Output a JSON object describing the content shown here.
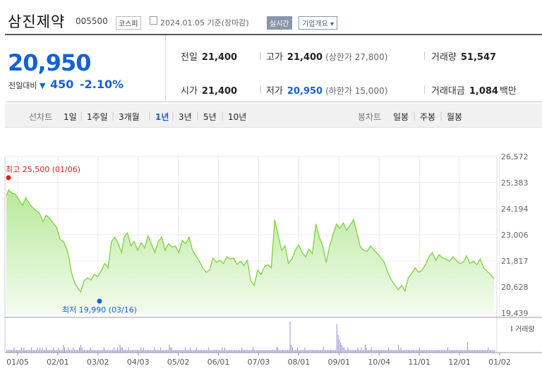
{
  "stock": {
    "name": "삼진제약",
    "code": "005500",
    "market": "코스피",
    "date": "2024.01.05",
    "date_suffix": "기준(장마감)",
    "realtime_btn": "실시간",
    "company_btn": "기업개요 ▾"
  },
  "quote": {
    "price": "20,950",
    "compare_label": "전일대비",
    "compare_arrow": "▼",
    "change": "450",
    "change_pct": "-2.10%",
    "prev_label": "전일",
    "prev": "21,400",
    "open_label": "시가",
    "open": "21,400",
    "high_label": "고가",
    "high": "21,400",
    "upper_limit": "(상한가 27,800)",
    "low_label": "저가",
    "low": "20,950",
    "lower_limit": "(하한가 15,000)",
    "volume_label": "거래량",
    "volume": "51,547",
    "amount_label": "거래대금",
    "amount": "1,084",
    "amount_unit": "백만"
  },
  "periods": {
    "line_label": "선차트",
    "line_items": [
      "1일",
      "1주일",
      "3개월",
      "1년",
      "3년",
      "5년",
      "10년"
    ],
    "active": "1년",
    "candle_label": "봉차트",
    "candle_items": [
      "일봉",
      "주봉",
      "월봉"
    ]
  },
  "chart_data": {
    "type": "area",
    "y_ticks": [
      "26,572",
      "25,383",
      "24,194",
      "23,006",
      "21,817",
      "20,628",
      "19,439"
    ],
    "ylim": [
      19439,
      26572
    ],
    "x_ticks": [
      "01/05",
      "02/01",
      "03/02",
      "04/03",
      "05/02",
      "06/01",
      "07/03",
      "08/01",
      "09/01",
      "10/04",
      "11/01",
      "12/01",
      "01/02"
    ],
    "high_label": "최고 25,500 (01/06)",
    "low_label": "최저 19,990 (03/16)",
    "volume_legend": "거래량",
    "price_series": [
      [
        0,
        24800
      ],
      [
        2,
        25050
      ],
      [
        5,
        24900
      ],
      [
        8,
        24850
      ],
      [
        11,
        24600
      ],
      [
        14,
        24350
      ],
      [
        17,
        24700
      ],
      [
        20,
        24450
      ],
      [
        23,
        24250
      ],
      [
        26,
        24100
      ],
      [
        29,
        24000
      ],
      [
        32,
        23600
      ],
      [
        35,
        23900
      ],
      [
        38,
        23750
      ],
      [
        41,
        23550
      ],
      [
        44,
        23350
      ],
      [
        47,
        22800
      ],
      [
        50,
        22700
      ],
      [
        53,
        22350
      ],
      [
        55,
        21900
      ],
      [
        57,
        21300
      ],
      [
        59,
        20950
      ],
      [
        61,
        20700
      ],
      [
        63,
        20550
      ],
      [
        65,
        20400
      ],
      [
        68,
        20900
      ],
      [
        71,
        21050
      ],
      [
        74,
        20950
      ],
      [
        77,
        21200
      ],
      [
        80,
        21100
      ],
      [
        83,
        21350
      ],
      [
        86,
        21700
      ],
      [
        89,
        21500
      ],
      [
        92,
        22700
      ],
      [
        95,
        22900
      ],
      [
        98,
        22600
      ],
      [
        101,
        22200
      ],
      [
        103,
        22900
      ],
      [
        106,
        23100
      ],
      [
        109,
        22500
      ],
      [
        112,
        22700
      ],
      [
        115,
        22300
      ],
      [
        118,
        22650
      ],
      [
        121,
        22400
      ],
      [
        124,
        22950
      ],
      [
        127,
        22600
      ],
      [
        130,
        22200
      ],
      [
        133,
        22700
      ],
      [
        136,
        22900
      ],
      [
        139,
        22300
      ],
      [
        142,
        22600
      ],
      [
        145,
        22450
      ],
      [
        148,
        22500
      ],
      [
        151,
        22200
      ],
      [
        154,
        22750
      ],
      [
        157,
        22600
      ],
      [
        160,
        22900
      ],
      [
        163,
        22300
      ],
      [
        166,
        22050
      ],
      [
        169,
        21800
      ],
      [
        172,
        21500
      ],
      [
        175,
        21300
      ],
      [
        178,
        21400
      ],
      [
        181,
        21950
      ],
      [
        184,
        21750
      ],
      [
        187,
        21850
      ],
      [
        190,
        21700
      ],
      [
        193,
        22000
      ],
      [
        196,
        21900
      ],
      [
        199,
        21950
      ],
      [
        202,
        21650
      ],
      [
        205,
        21800
      ],
      [
        208,
        21600
      ],
      [
        211,
        21850
      ],
      [
        214,
        20900
      ],
      [
        217,
        20700
      ],
      [
        220,
        21400
      ],
      [
        223,
        21200
      ],
      [
        226,
        21550
      ],
      [
        229,
        21650
      ],
      [
        232,
        21500
      ],
      [
        235,
        23700
      ],
      [
        238,
        23000
      ],
      [
        241,
        22300
      ],
      [
        244,
        22500
      ],
      [
        247,
        21700
      ],
      [
        250,
        21900
      ],
      [
        253,
        22300
      ],
      [
        256,
        22550
      ],
      [
        259,
        22200
      ],
      [
        262,
        22000
      ],
      [
        265,
        22350
      ],
      [
        268,
        22150
      ],
      [
        271,
        23500
      ],
      [
        274,
        22900
      ],
      [
        277,
        22500
      ],
      [
        280,
        21750
      ],
      [
        283,
        22500
      ],
      [
        286,
        23000
      ],
      [
        289,
        23500
      ],
      [
        292,
        23300
      ],
      [
        295,
        23550
      ],
      [
        298,
        23200
      ],
      [
        301,
        23450
      ],
      [
        304,
        23700
      ],
      [
        307,
        23100
      ],
      [
        310,
        22450
      ],
      [
        313,
        22300
      ],
      [
        316,
        22250
      ],
      [
        319,
        22500
      ],
      [
        322,
        22300
      ],
      [
        325,
        22150
      ],
      [
        328,
        21950
      ],
      [
        331,
        21750
      ],
      [
        334,
        21300
      ],
      [
        337,
        20950
      ],
      [
        340,
        20750
      ],
      [
        343,
        20500
      ],
      [
        346,
        20700
      ],
      [
        349,
        20450
      ],
      [
        352,
        21050
      ],
      [
        355,
        21250
      ],
      [
        358,
        21500
      ],
      [
        361,
        21300
      ],
      [
        364,
        21400
      ],
      [
        367,
        21650
      ],
      [
        370,
        22000
      ],
      [
        373,
        22200
      ],
      [
        376,
        21850
      ],
      [
        379,
        22100
      ],
      [
        382,
        21950
      ],
      [
        385,
        21900
      ],
      [
        388,
        21800
      ],
      [
        391,
        22000
      ],
      [
        394,
        21850
      ],
      [
        397,
        21700
      ],
      [
        400,
        21750
      ],
      [
        403,
        22050
      ],
      [
        406,
        21700
      ],
      [
        409,
        21800
      ],
      [
        412,
        21650
      ],
      [
        415,
        21900
      ],
      [
        418,
        21500
      ],
      [
        421,
        21350
      ],
      [
        424,
        21200
      ],
      [
        427,
        21000
      ]
    ],
    "volume_series": [
      1,
      1,
      1,
      1,
      1,
      1,
      2,
      1,
      1,
      1,
      1,
      1,
      2,
      1,
      2,
      1,
      1,
      1,
      1,
      1,
      2,
      1,
      1,
      1,
      1,
      2,
      1,
      2,
      1,
      2,
      1,
      1,
      2,
      1,
      1,
      1,
      1,
      1,
      2,
      1,
      1,
      1,
      2,
      1,
      1,
      1,
      3,
      2,
      1,
      1,
      2,
      1,
      1,
      1,
      2,
      1,
      1,
      1,
      1,
      2,
      3,
      2,
      1,
      1,
      1,
      1,
      1,
      1,
      2,
      1,
      1,
      1,
      1,
      1,
      1,
      1,
      1,
      1,
      1,
      2,
      1,
      1,
      1,
      1,
      1,
      1,
      1,
      2,
      1,
      1,
      2,
      1,
      3,
      2,
      2,
      1,
      1,
      1,
      1,
      2,
      1,
      1,
      1,
      1,
      1,
      1,
      1,
      1,
      1,
      2,
      1,
      2,
      1,
      1,
      1,
      1,
      1,
      1,
      1,
      1,
      2,
      1,
      1,
      1,
      1,
      2,
      1,
      1,
      1,
      1,
      1,
      1,
      3,
      2,
      2,
      1,
      1,
      1,
      1,
      1,
      1,
      1,
      1,
      1,
      1,
      2,
      1,
      1,
      1,
      2,
      1,
      1,
      1,
      1,
      2,
      1,
      1,
      1,
      1,
      1,
      1,
      1,
      1,
      1,
      2,
      1,
      1,
      1,
      1,
      1,
      1,
      1,
      1,
      1,
      1,
      2,
      1,
      2,
      1,
      1,
      1,
      1,
      1,
      1,
      1,
      1,
      1,
      1,
      1,
      1,
      1,
      2,
      1,
      1,
      1,
      1,
      1,
      1,
      1,
      1,
      2,
      1,
      1,
      1,
      1,
      1,
      1,
      1,
      1,
      1,
      1,
      1,
      1,
      1,
      1,
      1,
      1,
      1,
      1,
      2,
      2,
      1,
      1,
      1,
      1,
      1,
      1,
      1,
      1,
      1,
      12,
      3,
      2,
      1,
      1,
      1,
      2,
      1,
      1,
      1,
      1,
      1,
      2,
      1,
      1,
      1,
      1,
      1,
      1,
      1,
      1,
      1,
      1,
      1,
      1,
      1,
      1,
      2,
      1,
      1,
      1,
      1,
      1,
      1,
      1,
      1,
      1,
      1,
      11,
      7,
      5,
      4,
      3,
      2,
      2,
      1,
      1,
      2,
      1,
      1,
      1,
      1,
      1,
      1,
      1,
      2,
      1,
      1,
      2,
      1,
      1,
      3,
      2,
      1,
      1,
      1,
      2,
      1,
      1,
      1,
      1,
      1,
      1,
      1,
      1,
      1,
      1,
      1,
      1,
      1,
      2,
      1,
      1,
      1,
      1,
      1,
      1,
      1,
      3,
      1,
      2,
      1,
      1,
      1,
      1,
      1,
      1,
      1,
      1,
      1,
      1,
      1,
      1,
      1,
      1,
      2,
      1,
      1,
      1,
      1,
      1,
      1,
      1,
      1,
      1,
      1,
      1,
      1,
      1,
      1,
      1,
      1,
      1,
      1,
      1,
      1,
      1,
      1,
      2,
      1,
      1,
      1,
      1,
      1,
      1,
      1,
      1,
      1,
      1,
      1,
      1,
      1,
      1,
      1,
      4,
      1,
      1,
      1,
      1,
      1,
      1,
      1,
      1,
      1,
      1,
      1,
      1,
      1,
      1,
      1,
      1,
      2,
      1,
      1,
      1,
      1,
      1
    ]
  }
}
